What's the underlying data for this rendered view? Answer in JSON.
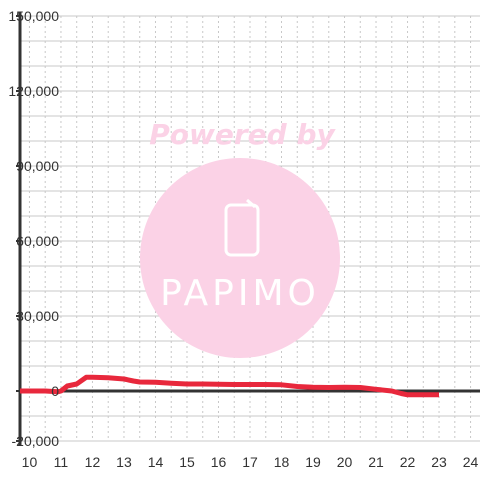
{
  "colors": {
    "background": "#ffffff",
    "grid": "#c8c8c8",
    "axis": "#333333",
    "series": "#e8283c",
    "watermark": "#fbd2e6",
    "watermark_text": "#ffffff"
  },
  "watermark": {
    "text": "Powered by",
    "logo_text": "PAPIMO",
    "icon": "phone-icon"
  },
  "chart_data": {
    "type": "line",
    "title": "",
    "xlabel": "",
    "ylabel": "",
    "xlim": [
      9.7,
      24.3
    ],
    "ylim": [
      -20000,
      150000
    ],
    "x_ticks": [
      10,
      11,
      12,
      13,
      14,
      15,
      16,
      17,
      18,
      19,
      20,
      21,
      22,
      23,
      24
    ],
    "y_ticks": [
      -20000,
      0,
      30000,
      60000,
      90000,
      120000,
      150000
    ],
    "y_tick_labels": [
      "-20,000",
      "0",
      "30,000",
      "60,000",
      "90,000",
      "120,000",
      "150,000"
    ],
    "grid": {
      "x_dashed": true,
      "y_solid_every": 10000
    },
    "series": [
      {
        "x": [
          9.7,
          10.5,
          10.9,
          11.0,
          11.2,
          11.5,
          11.8,
          12.0,
          12.5,
          13.0,
          13.3,
          13.5,
          14.0,
          14.5,
          15.0,
          15.5,
          16.0,
          16.5,
          17.0,
          17.5,
          18.0,
          18.5,
          19.0,
          19.5,
          20.0,
          20.5,
          21.0,
          21.5,
          21.8,
          22.0,
          22.5,
          23.0
        ],
        "y": [
          0,
          0,
          -300,
          0,
          2000,
          2800,
          5500,
          5500,
          5300,
          4800,
          4000,
          3600,
          3500,
          3100,
          2800,
          2800,
          2700,
          2600,
          2600,
          2600,
          2500,
          1800,
          1500,
          1400,
          1500,
          1400,
          700,
          0,
          -1000,
          -1500,
          -1500,
          -1500
        ]
      }
    ]
  }
}
